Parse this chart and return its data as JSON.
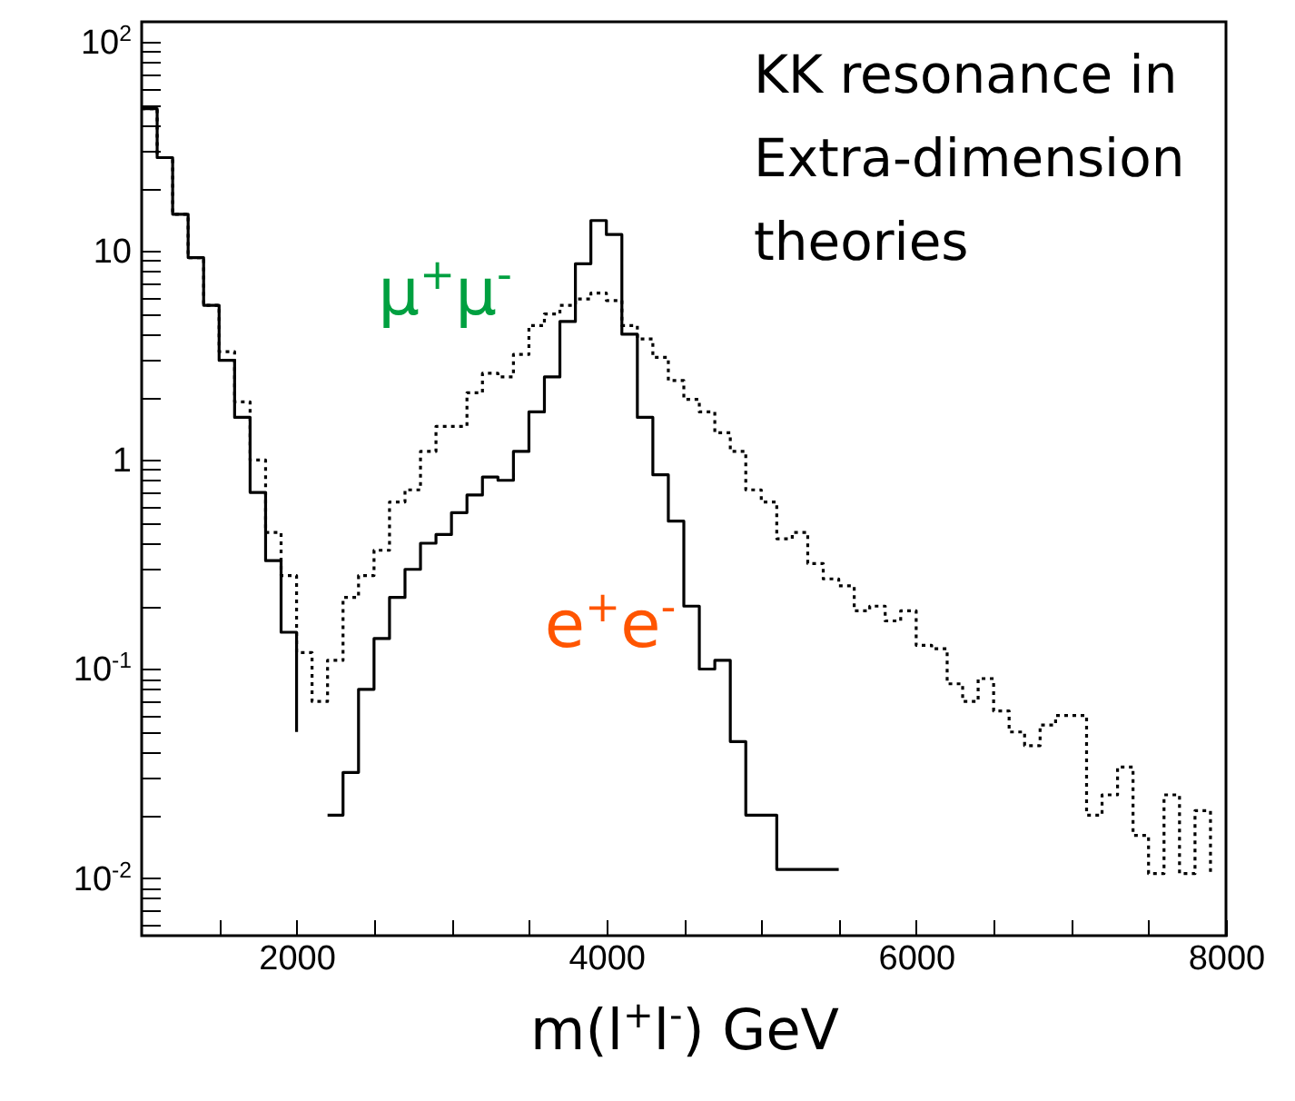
{
  "chart_data": {
    "type": "step",
    "xlabel": "m(l$^{+}$l$^{-}$) GeV",
    "annotations": [
      "KK resonance in\nExtra-dimension\ntheories"
    ],
    "x": [
      1000,
      1100,
      1200,
      1300,
      1400,
      1500,
      1600,
      1700,
      1800,
      1900,
      2000,
      2100,
      2200,
      2300,
      2400,
      2500,
      2600,
      2700,
      2800,
      2900,
      3000,
      3100,
      3200,
      3300,
      3400,
      3500,
      3600,
      3700,
      3800,
      3900,
      4000,
      4100,
      4200,
      4300,
      4400,
      4500,
      4600,
      4700,
      4800,
      4900,
      5000,
      5100,
      5200,
      5300,
      5400,
      5500,
      5600,
      5700,
      5800,
      5900,
      6000,
      6100,
      6200,
      6300,
      6400,
      6500,
      6600,
      6700,
      6800,
      6900,
      7000,
      7100,
      7200,
      7300,
      7400,
      7500,
      7600,
      7700,
      7800,
      7900
    ],
    "series": [
      {
        "name": "e$^{+}$e$^{-}$",
        "color": "#000000",
        "line_style": "solid",
        "values": [
          48,
          28,
          15,
          9.3,
          5.5,
          3,
          1.6,
          0.7,
          0.33,
          0.15,
          0.05,
          null,
          0.02,
          0.032,
          0.08,
          0.14,
          0.22,
          0.3,
          0.4,
          0.44,
          0.56,
          0.68,
          0.83,
          0.8,
          1.1,
          1.7,
          2.5,
          4.6,
          8.7,
          14,
          12,
          4,
          1.6,
          0.85,
          0.51,
          0.2,
          0.1,
          0.11,
          0.045,
          0.02,
          0.02,
          0.011,
          0.011,
          0.011,
          0.011,
          0.011,
          null,
          null,
          null,
          null,
          null,
          null,
          null,
          null,
          null,
          null,
          null,
          null,
          null,
          null,
          null,
          null,
          null,
          null,
          null,
          null,
          null,
          null,
          null,
          null
        ]
      },
      {
        "name": "μ$^{+}$μ$^{-}$",
        "color": "#000000",
        "line_style": "dotted",
        "values": [
          48,
          28,
          15,
          9.3,
          5.5,
          3.3,
          1.9,
          1,
          0.45,
          0.28,
          0.12,
          0.07,
          0.11,
          0.22,
          0.28,
          0.37,
          0.63,
          0.72,
          1.1,
          1.45,
          1.45,
          2.1,
          2.6,
          2.5,
          3.2,
          4.4,
          5,
          5.5,
          5.9,
          6.3,
          5.8,
          4.4,
          3.8,
          3.1,
          2.4,
          1.95,
          1.7,
          1.35,
          1.1,
          0.72,
          0.63,
          0.42,
          0.45,
          0.32,
          0.27,
          0.25,
          0.19,
          0.2,
          0.17,
          0.19,
          0.13,
          0.125,
          0.085,
          0.07,
          0.09,
          0.063,
          0.05,
          0.043,
          0.054,
          0.06,
          0.06,
          0.02,
          0.025,
          0.034,
          0.016,
          0.0105,
          0.025,
          0.0105,
          0.021,
          0.0105
        ]
      }
    ],
    "xlim": [
      1000,
      8000
    ],
    "xticks": [
      {
        "value": 1500,
        "label": null
      },
      2000,
      {
        "value": 2500,
        "label": null
      },
      {
        "value": 3000,
        "label": null
      },
      {
        "value": 3500,
        "label": null
      },
      4000,
      {
        "value": 4500,
        "label": null
      },
      {
        "value": 5000,
        "label": null
      },
      {
        "value": 5500,
        "label": null
      },
      6000,
      {
        "value": 6500,
        "label": null
      },
      {
        "value": 7000,
        "label": null
      },
      {
        "value": 7500,
        "label": null
      },
      8000
    ],
    "log": true,
    "ylim": [
      0.0053,
      125
    ],
    "yticks": [
      {
        "value": 0.006,
        "label": null
      },
      {
        "value": 0.007,
        "label": null
      },
      {
        "value": 0.008,
        "label": null
      },
      {
        "value": 0.009,
        "label": null
      },
      {
        "value": 0.01,
        "label": "10$^{-2}$"
      },
      {
        "value": 0.02,
        "label": null
      },
      {
        "value": 0.03,
        "label": null
      },
      {
        "value": 0.04,
        "label": null
      },
      {
        "value": 0.05,
        "label": null
      },
      {
        "value": 0.06,
        "label": null
      },
      {
        "value": 0.07,
        "label": null
      },
      {
        "value": 0.08,
        "label": null
      },
      {
        "value": 0.09,
        "label": null
      },
      {
        "value": 0.1,
        "label": "10$^{-1}$"
      },
      {
        "value": 0.2,
        "label": null
      },
      {
        "value": 0.3,
        "label": null
      },
      {
        "value": 0.4,
        "label": null
      },
      {
        "value": 0.5,
        "label": null
      },
      {
        "value": 0.6,
        "label": null
      },
      {
        "value": 0.7,
        "label": null
      },
      {
        "value": 0.8,
        "label": null
      },
      {
        "value": 0.9,
        "label": null
      },
      1,
      {
        "value": 2,
        "label": null
      },
      {
        "value": 3,
        "label": null
      },
      {
        "value": 4,
        "label": null
      },
      {
        "value": 5,
        "label": null
      },
      {
        "value": 6,
        "label": null
      },
      {
        "value": 7,
        "label": null
      },
      {
        "value": 8,
        "label": null
      },
      {
        "value": 9,
        "label": null
      },
      10,
      {
        "value": 20,
        "label": null
      },
      {
        "value": 30,
        "label": null
      },
      {
        "value": 40,
        "label": null
      },
      {
        "value": 50,
        "label": null
      },
      {
        "value": 60,
        "label": null
      },
      {
        "value": 70,
        "label": null
      },
      {
        "value": 80,
        "label": null
      },
      {
        "value": 90,
        "label": null
      },
      {
        "value": 100,
        "label": "10$^{2}$"
      }
    ],
    "grid": false
  }
}
